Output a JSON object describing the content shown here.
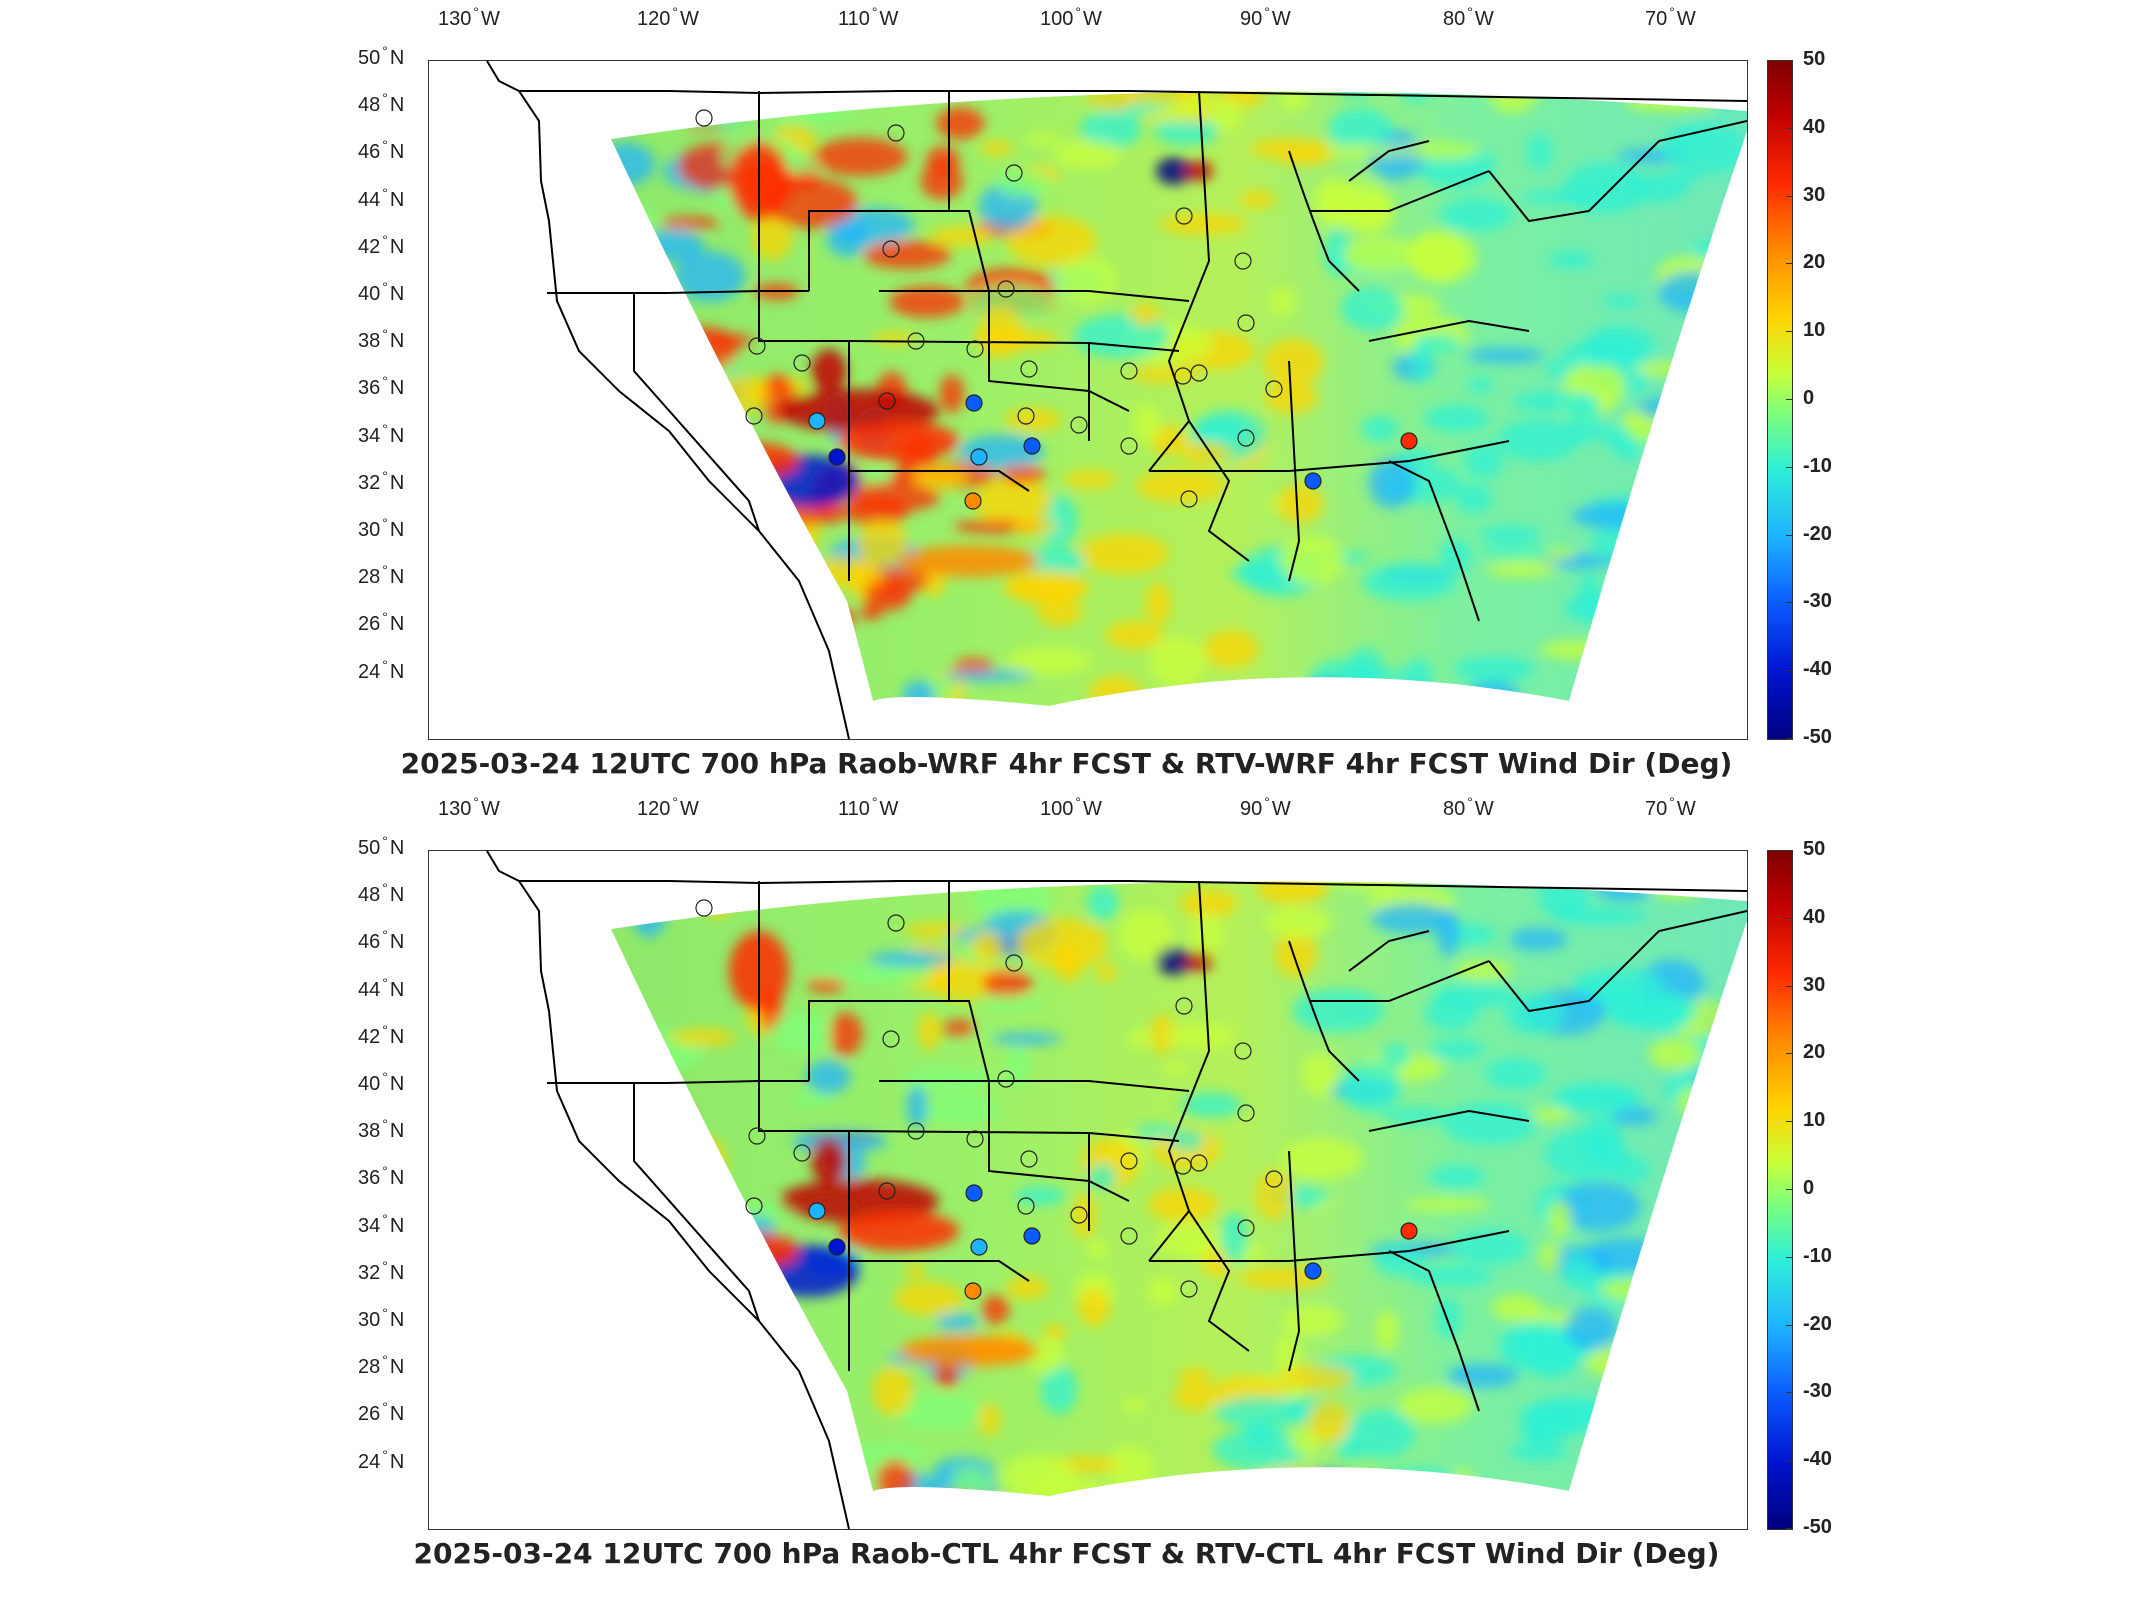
{
  "lon_labels": [
    {
      "deg": "130",
      "hemi": "W"
    },
    {
      "deg": "120",
      "hemi": "W"
    },
    {
      "deg": "110",
      "hemi": "W"
    },
    {
      "deg": "100",
      "hemi": "W"
    },
    {
      "deg": "90",
      "hemi": "W"
    },
    {
      "deg": "80",
      "hemi": "W"
    },
    {
      "deg": "70",
      "hemi": "W"
    }
  ],
  "lat_labels": [
    {
      "deg": "50",
      "hemi": "N"
    },
    {
      "deg": "48",
      "hemi": "N"
    },
    {
      "deg": "46",
      "hemi": "N"
    },
    {
      "deg": "44",
      "hemi": "N"
    },
    {
      "deg": "42",
      "hemi": "N"
    },
    {
      "deg": "40",
      "hemi": "N"
    },
    {
      "deg": "38",
      "hemi": "N"
    },
    {
      "deg": "36",
      "hemi": "N"
    },
    {
      "deg": "34",
      "hemi": "N"
    },
    {
      "deg": "32",
      "hemi": "N"
    },
    {
      "deg": "30",
      "hemi": "N"
    },
    {
      "deg": "28",
      "hemi": "N"
    },
    {
      "deg": "26",
      "hemi": "N"
    },
    {
      "deg": "24",
      "hemi": "N"
    }
  ],
  "colorbar": {
    "ticks": [
      "50",
      "40",
      "30",
      "20",
      "10",
      "0",
      "-10",
      "-20",
      "-30",
      "-40",
      "-50"
    ],
    "range": [
      -50,
      50
    ],
    "colormap": "jet",
    "units": "Deg"
  },
  "panels": [
    {
      "title": "2025-03-24 12UTC 700 hPa Raob-WRF 4hr FCST & RTV-WRF 4hr FCST Wind Dir (Deg)"
    },
    {
      "title": "2025-03-24 12UTC 700 hPa Raob-CTL 4hr FCST & RTV-CTL 4hr FCST Wind Dir (Deg)"
    }
  ]
}
